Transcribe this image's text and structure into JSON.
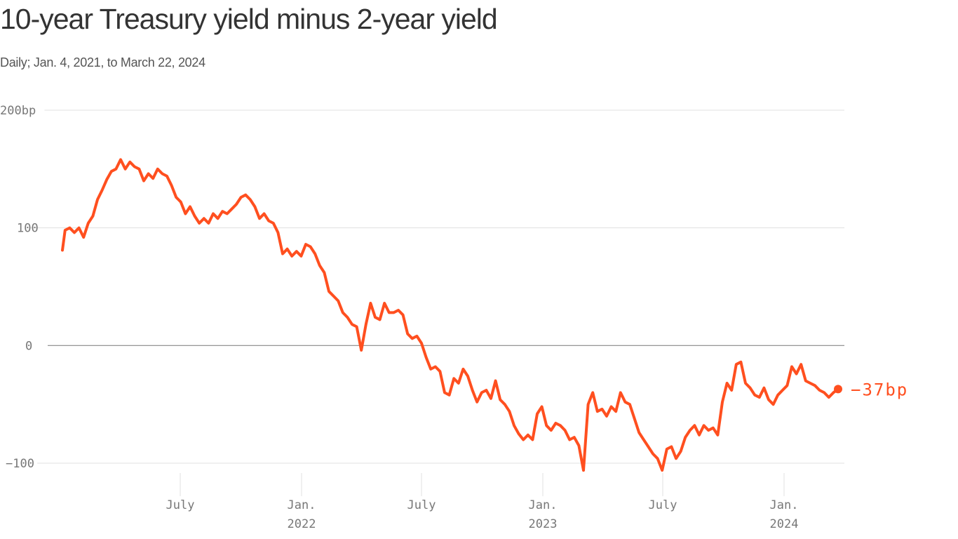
{
  "header": {
    "title": "10-year Treasury yield minus 2-year yield",
    "subtitle": "Daily; Jan. 4, 2021, to March 22, 2024"
  },
  "colors": {
    "line": "#ff4f1f",
    "grid": "#e0e0e0",
    "zero_line": "#888888",
    "tick_text": "#777777",
    "title": "#333333"
  },
  "end_label": "−37bp",
  "chart_data": {
    "type": "line",
    "title": "10-year Treasury yield minus 2-year yield",
    "subtitle": "Daily; Jan. 4, 2021, to March 22, 2024",
    "xlabel": "",
    "ylabel": "bp",
    "ylim": [
      -100,
      200
    ],
    "yticks": [
      {
        "value": 200,
        "label": "200bp"
      },
      {
        "value": 100,
        "label": "100"
      },
      {
        "value": 0,
        "label": "0"
      },
      {
        "value": -100,
        "label": "−100"
      }
    ],
    "xticks": [
      {
        "label": "July",
        "sublabel": ""
      },
      {
        "label": "Jan.",
        "sublabel": "2022"
      },
      {
        "label": "July",
        "sublabel": ""
      },
      {
        "label": "Jan.",
        "sublabel": "2023"
      },
      {
        "label": "July",
        "sublabel": ""
      },
      {
        "label": "Jan.",
        "sublabel": "2024"
      }
    ],
    "grid": true,
    "legend": "none",
    "end_annotation": {
      "value": -37,
      "label": "−37bp"
    },
    "series": [
      {
        "name": "10Y minus 2Y spread (bp)",
        "points": [
          [
            "2021-01-04",
            81
          ],
          [
            "2021-01-08",
            98
          ],
          [
            "2021-01-15",
            100
          ],
          [
            "2021-01-22",
            96
          ],
          [
            "2021-01-29",
            100
          ],
          [
            "2021-02-05",
            92
          ],
          [
            "2021-02-12",
            104
          ],
          [
            "2021-02-19",
            110
          ],
          [
            "2021-02-26",
            124
          ],
          [
            "2021-03-05",
            132
          ],
          [
            "2021-03-12",
            141
          ],
          [
            "2021-03-19",
            148
          ],
          [
            "2021-03-26",
            150
          ],
          [
            "2021-04-02",
            158
          ],
          [
            "2021-04-09",
            150
          ],
          [
            "2021-04-16",
            156
          ],
          [
            "2021-04-23",
            152
          ],
          [
            "2021-04-30",
            150
          ],
          [
            "2021-05-07",
            140
          ],
          [
            "2021-05-14",
            146
          ],
          [
            "2021-05-21",
            142
          ],
          [
            "2021-05-28",
            150
          ],
          [
            "2021-06-04",
            146
          ],
          [
            "2021-06-11",
            144
          ],
          [
            "2021-06-18",
            136
          ],
          [
            "2021-06-25",
            126
          ],
          [
            "2021-07-02",
            122
          ],
          [
            "2021-07-09",
            112
          ],
          [
            "2021-07-16",
            118
          ],
          [
            "2021-07-23",
            110
          ],
          [
            "2021-07-30",
            104
          ],
          [
            "2021-08-06",
            108
          ],
          [
            "2021-08-13",
            104
          ],
          [
            "2021-08-20",
            112
          ],
          [
            "2021-08-27",
            108
          ],
          [
            "2021-09-03",
            114
          ],
          [
            "2021-09-10",
            112
          ],
          [
            "2021-09-17",
            116
          ],
          [
            "2021-09-24",
            120
          ],
          [
            "2021-10-01",
            126
          ],
          [
            "2021-10-08",
            128
          ],
          [
            "2021-10-15",
            124
          ],
          [
            "2021-10-22",
            118
          ],
          [
            "2021-10-29",
            108
          ],
          [
            "2021-11-05",
            112
          ],
          [
            "2021-11-12",
            106
          ],
          [
            "2021-11-19",
            104
          ],
          [
            "2021-11-26",
            96
          ],
          [
            "2021-12-03",
            78
          ],
          [
            "2021-12-10",
            82
          ],
          [
            "2021-12-17",
            76
          ],
          [
            "2021-12-24",
            80
          ],
          [
            "2021-12-31",
            76
          ],
          [
            "2022-01-07",
            86
          ],
          [
            "2022-01-14",
            84
          ],
          [
            "2022-01-21",
            78
          ],
          [
            "2022-01-28",
            68
          ],
          [
            "2022-02-04",
            62
          ],
          [
            "2022-02-11",
            46
          ],
          [
            "2022-02-18",
            42
          ],
          [
            "2022-02-25",
            38
          ],
          [
            "2022-03-04",
            28
          ],
          [
            "2022-03-11",
            24
          ],
          [
            "2022-03-18",
            18
          ],
          [
            "2022-03-25",
            16
          ],
          [
            "2022-04-01",
            -4
          ],
          [
            "2022-04-08",
            18
          ],
          [
            "2022-04-15",
            36
          ],
          [
            "2022-04-22",
            24
          ],
          [
            "2022-04-29",
            22
          ],
          [
            "2022-05-06",
            36
          ],
          [
            "2022-05-13",
            28
          ],
          [
            "2022-05-20",
            28
          ],
          [
            "2022-05-27",
            30
          ],
          [
            "2022-06-03",
            26
          ],
          [
            "2022-06-10",
            10
          ],
          [
            "2022-06-17",
            6
          ],
          [
            "2022-06-24",
            8
          ],
          [
            "2022-07-01",
            2
          ],
          [
            "2022-07-08",
            -10
          ],
          [
            "2022-07-15",
            -20
          ],
          [
            "2022-07-22",
            -18
          ],
          [
            "2022-07-29",
            -22
          ],
          [
            "2022-08-05",
            -40
          ],
          [
            "2022-08-12",
            -42
          ],
          [
            "2022-08-19",
            -28
          ],
          [
            "2022-08-26",
            -32
          ],
          [
            "2022-09-02",
            -20
          ],
          [
            "2022-09-09",
            -26
          ],
          [
            "2022-09-16",
            -38
          ],
          [
            "2022-09-23",
            -48
          ],
          [
            "2022-09-30",
            -40
          ],
          [
            "2022-10-07",
            -38
          ],
          [
            "2022-10-14",
            -45
          ],
          [
            "2022-10-21",
            -30
          ],
          [
            "2022-10-28",
            -46
          ],
          [
            "2022-11-04",
            -50
          ],
          [
            "2022-11-11",
            -56
          ],
          [
            "2022-11-18",
            -68
          ],
          [
            "2022-11-25",
            -75
          ],
          [
            "2022-12-02",
            -80
          ],
          [
            "2022-12-09",
            -76
          ],
          [
            "2022-12-16",
            -80
          ],
          [
            "2022-12-23",
            -58
          ],
          [
            "2022-12-30",
            -52
          ],
          [
            "2023-01-06",
            -68
          ],
          [
            "2023-01-13",
            -72
          ],
          [
            "2023-01-20",
            -66
          ],
          [
            "2023-01-27",
            -68
          ],
          [
            "2023-02-03",
            -72
          ],
          [
            "2023-02-10",
            -80
          ],
          [
            "2023-02-17",
            -78
          ],
          [
            "2023-02-24",
            -85
          ],
          [
            "2023-03-03",
            -106
          ],
          [
            "2023-03-10",
            -50
          ],
          [
            "2023-03-17",
            -40
          ],
          [
            "2023-03-24",
            -56
          ],
          [
            "2023-03-31",
            -54
          ],
          [
            "2023-04-07",
            -60
          ],
          [
            "2023-04-14",
            -52
          ],
          [
            "2023-04-21",
            -56
          ],
          [
            "2023-04-28",
            -40
          ],
          [
            "2023-05-05",
            -48
          ],
          [
            "2023-05-12",
            -50
          ],
          [
            "2023-05-19",
            -62
          ],
          [
            "2023-05-26",
            -74
          ],
          [
            "2023-06-02",
            -80
          ],
          [
            "2023-06-09",
            -86
          ],
          [
            "2023-06-16",
            -92
          ],
          [
            "2023-06-23",
            -96
          ],
          [
            "2023-06-30",
            -106
          ],
          [
            "2023-07-07",
            -88
          ],
          [
            "2023-07-14",
            -86
          ],
          [
            "2023-07-21",
            -96
          ],
          [
            "2023-07-28",
            -90
          ],
          [
            "2023-08-04",
            -78
          ],
          [
            "2023-08-11",
            -72
          ],
          [
            "2023-08-18",
            -68
          ],
          [
            "2023-08-25",
            -76
          ],
          [
            "2023-09-01",
            -68
          ],
          [
            "2023-09-08",
            -72
          ],
          [
            "2023-09-15",
            -70
          ],
          [
            "2023-09-22",
            -76
          ],
          [
            "2023-09-29",
            -48
          ],
          [
            "2023-10-06",
            -32
          ],
          [
            "2023-10-13",
            -38
          ],
          [
            "2023-10-20",
            -16
          ],
          [
            "2023-10-27",
            -14
          ],
          [
            "2023-11-03",
            -32
          ],
          [
            "2023-11-10",
            -36
          ],
          [
            "2023-11-17",
            -42
          ],
          [
            "2023-11-24",
            -44
          ],
          [
            "2023-12-01",
            -36
          ],
          [
            "2023-12-08",
            -46
          ],
          [
            "2023-12-15",
            -50
          ],
          [
            "2023-12-22",
            -42
          ],
          [
            "2023-12-29",
            -38
          ],
          [
            "2024-01-05",
            -34
          ],
          [
            "2024-01-12",
            -18
          ],
          [
            "2024-01-19",
            -24
          ],
          [
            "2024-01-26",
            -16
          ],
          [
            "2024-02-02",
            -30
          ],
          [
            "2024-02-09",
            -32
          ],
          [
            "2024-02-16",
            -34
          ],
          [
            "2024-02-23",
            -38
          ],
          [
            "2024-03-01",
            -40
          ],
          [
            "2024-03-08",
            -44
          ],
          [
            "2024-03-15",
            -40
          ],
          [
            "2024-03-22",
            -37
          ]
        ]
      }
    ]
  }
}
